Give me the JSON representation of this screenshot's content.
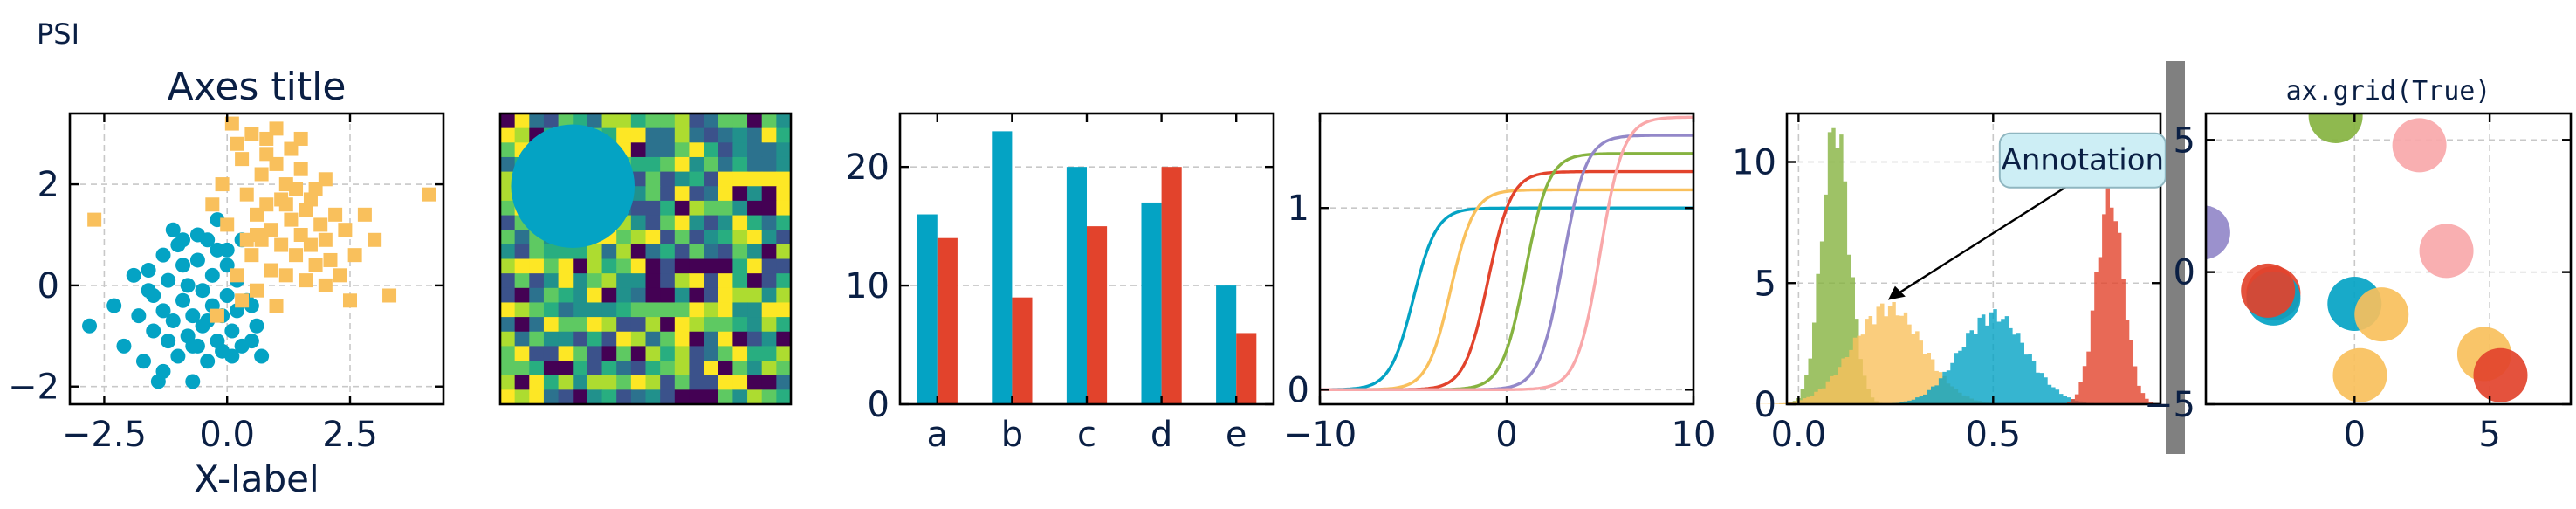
{
  "figure": {
    "tag": "PSI",
    "colors": {
      "teal": "#04a3c4",
      "yellow": "#f9c05c",
      "red": "#e2432c",
      "green": "#86b340",
      "purple": "#9388c9",
      "pink": "#f9a8aa",
      "orange": "#f5b23c",
      "separator": "#808080",
      "text": "#0a1f44"
    }
  },
  "chart_data": [
    {
      "type": "scatter",
      "title": "Axes title",
      "xlabel": "X-label",
      "ylabel": "",
      "xlim": [
        -3.2,
        4.4
      ],
      "ylim": [
        -2.35,
        3.4
      ],
      "xticks": [
        -2.5,
        0.0,
        2.5
      ],
      "xtick_labels": [
        "−2.5",
        "0.0",
        "2.5"
      ],
      "yticks": [
        -2,
        0,
        2
      ],
      "ytick_labels": [
        "−2",
        "0",
        "2"
      ],
      "grid": true,
      "series": [
        {
          "marker": "circle",
          "color": "#04a3c4",
          "x": [
            -2.8,
            -2.3,
            -2.1,
            -1.9,
            -1.8,
            -1.7,
            -1.6,
            -1.5,
            -1.5,
            -1.4,
            -1.3,
            -1.3,
            -1.2,
            -1.2,
            -1.1,
            -1.0,
            -1.0,
            -0.9,
            -0.9,
            -0.8,
            -0.8,
            -0.7,
            -0.7,
            -0.6,
            -0.6,
            -0.5,
            -0.5,
            -0.4,
            -0.4,
            -0.3,
            -0.3,
            -0.2,
            -0.2,
            -0.1,
            -0.1,
            0.0,
            0.0,
            0.1,
            0.1,
            0.2,
            0.2,
            0.3,
            0.4,
            0.5,
            0.6,
            0.7,
            -1.1,
            -0.6,
            -0.2,
            0.3,
            -1.6,
            -0.9,
            0.0,
            -0.4,
            0.5,
            -1.3,
            -0.7
          ],
          "y": [
            -0.8,
            -0.4,
            -1.2,
            0.2,
            -0.6,
            -1.5,
            0.3,
            -0.9,
            -0.2,
            -1.9,
            0.6,
            -0.5,
            -1.1,
            0.1,
            -0.7,
            0.8,
            -1.4,
            -0.3,
            0.4,
            -1.0,
            0.0,
            -1.9,
            -0.6,
            0.5,
            -1.2,
            -0.1,
            -0.8,
            0.9,
            -1.5,
            -0.4,
            0.2,
            -1.1,
            0.7,
            -0.6,
            -1.3,
            -0.2,
            0.4,
            -0.9,
            -1.4,
            0.1,
            -0.5,
            -1.2,
            -0.3,
            -1.1,
            -0.8,
            -1.4,
            1.1,
            1.0,
            1.3,
            0.9,
            -0.1,
            0.9,
            0.7,
            -0.7,
            -0.4,
            -1.7,
            -1.2
          ]
        },
        {
          "marker": "square",
          "color": "#f9c05c",
          "x": [
            -2.7,
            -0.3,
            -0.2,
            0.0,
            0.1,
            0.2,
            0.3,
            0.3,
            0.4,
            0.5,
            0.5,
            0.6,
            0.6,
            0.7,
            0.7,
            0.8,
            0.8,
            0.9,
            0.9,
            1.0,
            1.0,
            1.1,
            1.1,
            1.2,
            1.2,
            1.3,
            1.3,
            1.4,
            1.4,
            1.5,
            1.5,
            1.6,
            1.6,
            1.7,
            1.8,
            1.8,
            1.9,
            2.0,
            2.0,
            2.1,
            2.2,
            2.3,
            2.4,
            2.5,
            2.6,
            2.8,
            3.0,
            3.3,
            4.1,
            -0.1,
            0.2,
            0.4,
            0.6,
            0.8,
            1.0,
            1.2,
            1.5,
            1.7,
            2.0
          ],
          "y": [
            1.3,
            1.6,
            -0.6,
            1.2,
            3.2,
            0.2,
            2.5,
            -0.3,
            1.8,
            0.6,
            3.0,
            1.4,
            -0.1,
            2.2,
            0.9,
            1.6,
            2.9,
            0.3,
            1.1,
            2.4,
            -0.4,
            1.7,
            0.8,
            2.0,
            0.2,
            1.3,
            2.7,
            0.6,
            1.9,
            1.0,
            2.3,
            0.1,
            1.5,
            0.8,
            1.9,
            0.4,
            1.2,
            0.9,
            2.1,
            0.5,
            1.4,
            0.2,
            1.1,
            -0.3,
            0.6,
            1.4,
            0.9,
            -0.2,
            1.8,
            2.0,
            2.8,
            0.9,
            1.0,
            2.6,
            3.1,
            1.6,
            2.9,
            1.7,
            0.0
          ]
        }
      ]
    },
    {
      "type": "heatmap",
      "title": "",
      "rows": 20,
      "cols": 20,
      "colormap": "viridis",
      "overlay": {
        "shape": "circle",
        "color": "#04a3c4",
        "cx": 5,
        "cy": 5,
        "r": 5
      }
    },
    {
      "type": "bar",
      "title": "",
      "xlabel": "",
      "ylabel": "",
      "categories": [
        "a",
        "b",
        "c",
        "d",
        "e"
      ],
      "ylim": [
        0,
        24.5
      ],
      "yticks": [
        0,
        10,
        20
      ],
      "grid": true,
      "series": [
        {
          "color": "#04a3c4",
          "values": [
            16,
            23,
            20,
            17,
            10
          ]
        },
        {
          "color": "#e2432c",
          "values": [
            14,
            9,
            15,
            20,
            6
          ]
        }
      ]
    },
    {
      "type": "line",
      "title": "",
      "xlabel": "",
      "ylabel": "",
      "xlim": [
        -10,
        10
      ],
      "ylim": [
        -0.08,
        1.52
      ],
      "xticks": [
        -10,
        0,
        10
      ],
      "xtick_labels": [
        "−10",
        "0",
        "10"
      ],
      "yticks": [
        0,
        1
      ],
      "grid": true,
      "series": [
        {
          "color": "#04a3c4",
          "shift": -5,
          "amp": 1.0
        },
        {
          "color": "#f9c05c",
          "shift": -3,
          "amp": 1.1
        },
        {
          "color": "#e2432c",
          "shift": -1,
          "amp": 1.2
        },
        {
          "color": "#86b340",
          "shift": 1,
          "amp": 1.3
        },
        {
          "color": "#9388c9",
          "shift": 3,
          "amp": 1.4
        },
        {
          "color": "#f9a8aa",
          "shift": 5,
          "amp": 1.5
        }
      ]
    },
    {
      "type": "area",
      "subtype": "histogram",
      "title": "",
      "xlabel": "",
      "ylabel": "",
      "xlim": [
        -0.03,
        0.93
      ],
      "ylim": [
        0,
        12
      ],
      "xticks": [
        0.0,
        0.5
      ],
      "xtick_labels": [
        "0.0",
        "0.5"
      ],
      "yticks": [
        0,
        5,
        10
      ],
      "grid": true,
      "annotation": {
        "text": "Annotation",
        "xy": [
          0.23,
          4.3
        ],
        "xytext": [
          0.73,
          10.1
        ]
      },
      "series": [
        {
          "color": "#86b340",
          "mean": 0.095,
          "sd": 0.035,
          "peak": 11.2
        },
        {
          "color": "#f9c05c",
          "mean": 0.23,
          "sd": 0.09,
          "peak": 3.9
        },
        {
          "color": "#04a3c4",
          "mean": 0.5,
          "sd": 0.085,
          "peak": 3.6
        },
        {
          "color": "#e2432c",
          "mean": 0.8,
          "sd": 0.035,
          "peak": 8.3
        }
      ]
    },
    {
      "type": "scatter",
      "title": "ax.grid(True)",
      "xlabel": "",
      "ylabel": "",
      "xlim": [
        -5.5,
        8.0
      ],
      "ylim": [
        -5.0,
        6.0
      ],
      "xticks": [
        0,
        5
      ],
      "yticks": [
        -5,
        0,
        5
      ],
      "ytick_labels": [
        "−5",
        "0",
        "5"
      ],
      "grid": true,
      "points": [
        {
          "x": -5.6,
          "y": 1.5,
          "color": "#9388c9"
        },
        {
          "x": -0.7,
          "y": 5.9,
          "color": "#86b340"
        },
        {
          "x": 2.4,
          "y": 4.8,
          "color": "#f9a8aa"
        },
        {
          "x": 3.4,
          "y": 0.8,
          "color": "#f9a8aa"
        },
        {
          "x": -3.0,
          "y": -0.8,
          "color": "#e2432c"
        },
        {
          "x": -3.0,
          "y": -1.0,
          "color": "#04a3c4"
        },
        {
          "x": -3.2,
          "y": -0.7,
          "color": "#e2432c"
        },
        {
          "x": 0.0,
          "y": -1.2,
          "color": "#04a3c4"
        },
        {
          "x": 1.0,
          "y": -1.6,
          "color": "#f9c05c"
        },
        {
          "x": 0.2,
          "y": -3.9,
          "color": "#f9c05c"
        },
        {
          "x": 4.8,
          "y": -3.1,
          "color": "#f9c05c"
        },
        {
          "x": 5.4,
          "y": -3.9,
          "color": "#e2432c"
        }
      ]
    }
  ]
}
